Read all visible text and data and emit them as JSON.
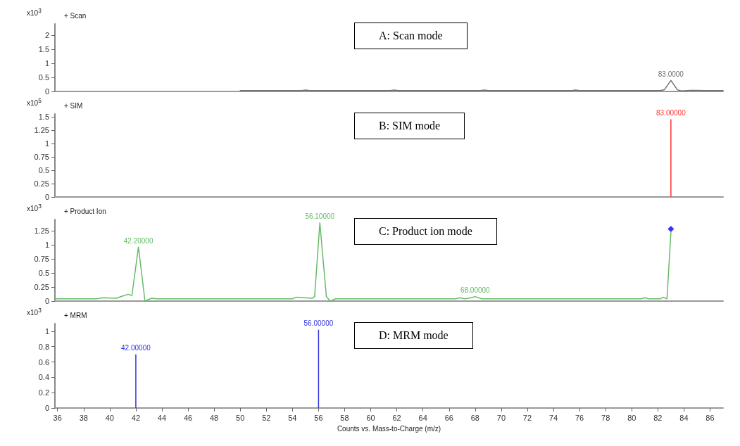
{
  "chart_data": [
    {
      "type": "line",
      "title": "+ Scan",
      "ylabel": "x10$^{3}$",
      "xlim": [
        35.8,
        87
      ],
      "ylim": [
        0,
        2.4
      ],
      "yticks": [
        0,
        0.5,
        1,
        1.5,
        2
      ],
      "tick_labels": "y",
      "marker": "none",
      "series": [
        {
          "color": "#707070",
          "x": [
            50,
            54.7,
            55,
            55.3,
            61.5,
            61.8,
            62.1,
            68.4,
            68.7,
            69,
            75.4,
            75.7,
            76,
            82.2,
            82.5,
            83,
            83.5,
            83.8,
            84.5,
            85,
            85.6,
            87
          ],
          "values": [
            0.03,
            0.03,
            0.05,
            0.03,
            0.03,
            0.05,
            0.03,
            0.03,
            0.05,
            0.03,
            0.03,
            0.05,
            0.03,
            0.03,
            0.06,
            0.39,
            0.06,
            0.02,
            0.04,
            0.04,
            0.03,
            0.03
          ]
        }
      ],
      "annotations": [
        {
          "text": "83.0000",
          "x": 83,
          "y": 0.39
        },
        "A: Scan mode"
      ]
    },
    {
      "type": "bar",
      "title": "+ SIM",
      "ylabel": "x10$^{5}$",
      "xlim": [
        35.8,
        87
      ],
      "ylim": [
        0,
        1.55
      ],
      "yticks": [
        0,
        0.25,
        0.5,
        0.75,
        1,
        1.25,
        1.5
      ],
      "tick_labels": "y",
      "series": [
        {
          "color": "#ff3333",
          "x": [
            83
          ],
          "values": [
            1.45
          ]
        }
      ],
      "annotations": [
        {
          "text": "83.00000",
          "x": 83,
          "y": 1.45
        },
        "B: SIM mode"
      ]
    },
    {
      "type": "line",
      "title": "+ Product Ion",
      "ylabel": "x10$^{3}$",
      "xlim": [
        35.8,
        87
      ],
      "ylim": [
        0,
        1.45
      ],
      "yticks": [
        0,
        0.25,
        0.5,
        0.75,
        1,
        1.25
      ],
      "tick_labels": "y",
      "marker": "none",
      "series": [
        {
          "color": "#66bb66",
          "x": [
            35.8,
            39,
            39.5,
            40.5,
            41,
            41.4,
            41.7,
            42.2,
            42.7,
            43.2,
            43.6,
            54,
            54.3,
            55.5,
            55.7,
            56.1,
            56.6,
            56.9,
            57.3,
            66.5,
            66.8,
            67.2,
            67.7,
            68,
            68.5,
            80.7,
            81,
            81.3,
            82.2,
            82.4,
            82.7,
            83
          ],
          "values": [
            0.04,
            0.04,
            0.06,
            0.05,
            0.09,
            0.12,
            0.1,
            0.96,
            0.0,
            0.05,
            0.04,
            0.04,
            0.07,
            0.05,
            0.08,
            1.39,
            0.08,
            0.0,
            0.04,
            0.04,
            0.06,
            0.04,
            0.06,
            0.08,
            0.04,
            0.04,
            0.06,
            0.04,
            0.04,
            0.07,
            0.04,
            1.22
          ]
        },
        {
          "type": "scatter",
          "marker": "diamond",
          "color": "#0000ff",
          "x": [
            83
          ],
          "values": [
            1.28
          ]
        }
      ],
      "annotations": [
        {
          "text": "42.20000",
          "x": 42.2,
          "y": 0.96
        },
        {
          "text": "56.10000",
          "x": 56.1,
          "y": 1.39
        },
        {
          "text": "68.00000",
          "x": 68,
          "y": 0.08
        },
        "C: Product ion mode"
      ]
    },
    {
      "type": "bar",
      "title": "+ MRM",
      "ylabel": "x10$^{3}$",
      "xlabel": "Counts vs. Mass-to-Charge (m/z)",
      "xlim": [
        35.8,
        87
      ],
      "xticks": [
        36,
        38,
        40,
        42,
        44,
        46,
        48,
        50,
        52,
        54,
        56,
        58,
        60,
        62,
        64,
        66,
        68,
        70,
        72,
        74,
        76,
        78,
        80,
        82,
        84,
        86
      ],
      "ylim": [
        0,
        1.1
      ],
      "yticks": [
        0,
        0.2,
        0.4,
        0.6,
        0.8,
        1
      ],
      "series": [
        {
          "color": "#3333dd",
          "x": [
            42,
            56
          ],
          "values": [
            0.7,
            1.02
          ]
        }
      ],
      "annotations": [
        {
          "text": "42.00000",
          "x": 42,
          "y": 0.7
        },
        {
          "text": "56.00000",
          "x": 56,
          "y": 1.02
        },
        "D: MRM mode"
      ]
    }
  ]
}
